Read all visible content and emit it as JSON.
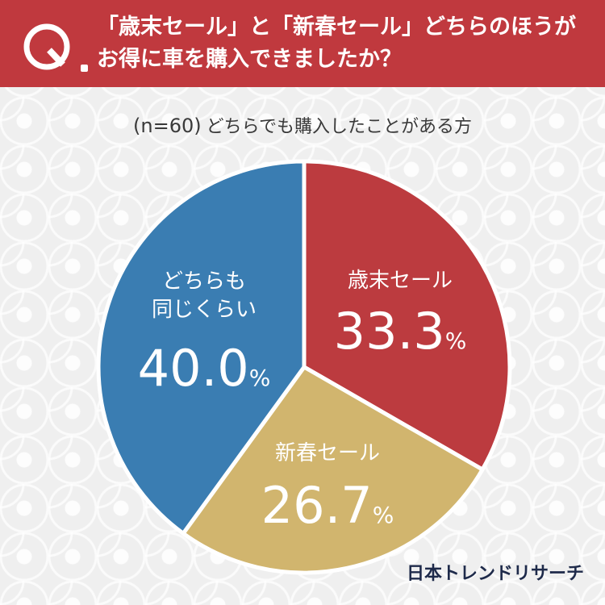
{
  "header": {
    "q_letter": "Q",
    "question_line1": "「歳末セール」と「新春セール」どちらのほうが",
    "question_line2": "お得に車を購入できましたか？",
    "bg_color": "#c0393e"
  },
  "subtitle": {
    "n": "(n=60)",
    "text": "どちらでも購入したことがある方"
  },
  "chart_data": {
    "type": "pie",
    "slices": [
      {
        "name": "歳末セール",
        "value": 33.3,
        "value_label": "33.3",
        "unit": "%",
        "color": "#bc3b3f"
      },
      {
        "name": "新春セール",
        "value": 26.7,
        "value_label": "26.7",
        "unit": "%",
        "color": "#d1b56e"
      },
      {
        "name_lines": [
          "どちらも",
          "同じくらい"
        ],
        "value": 40.0,
        "value_label": "40.0",
        "unit": "%",
        "color": "#3a7db2"
      }
    ]
  },
  "brand": {
    "text": "日本トレンドリサーチ",
    "color": "#1e2a4a"
  }
}
